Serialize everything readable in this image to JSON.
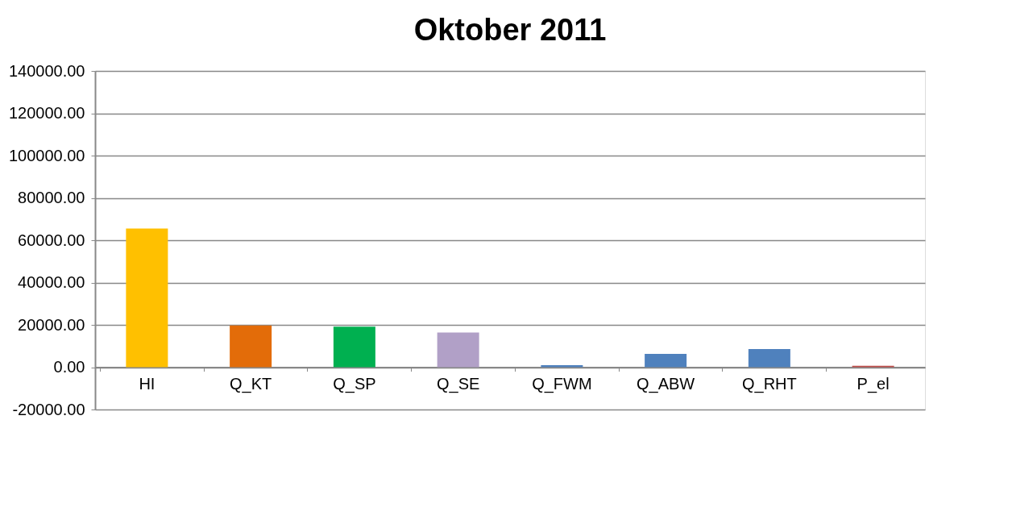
{
  "chart_data": {
    "type": "bar",
    "title": "Oktober 2011",
    "categories": [
      "HI",
      "Q_KT",
      "Q_SP",
      "Q_SE",
      "Q_FWM",
      "Q_ABW",
      "Q_RHT",
      "P_el"
    ],
    "values": [
      65500,
      19700,
      19100,
      16400,
      1000,
      6300,
      8600,
      700
    ],
    "colors": [
      "#ffc000",
      "#e36c09",
      "#00b050",
      "#b1a0c7",
      "#4f81bd",
      "#4f81bd",
      "#4f81bd",
      "#c0504d"
    ],
    "ylim": [
      -20000,
      140000
    ],
    "yticks": [
      {
        "value": -20000,
        "label": "-20000.00"
      },
      {
        "value": 0,
        "label": "0.00"
      },
      {
        "value": 20000,
        "label": "20000.00"
      },
      {
        "value": 40000,
        "label": "40000.00"
      },
      {
        "value": 60000,
        "label": "60000.00"
      },
      {
        "value": 80000,
        "label": "80000.00"
      },
      {
        "value": 100000,
        "label": "100000.00"
      },
      {
        "value": 120000,
        "label": "120000.00"
      },
      {
        "value": 140000,
        "label": "140000.00"
      }
    ],
    "grid": "y"
  }
}
